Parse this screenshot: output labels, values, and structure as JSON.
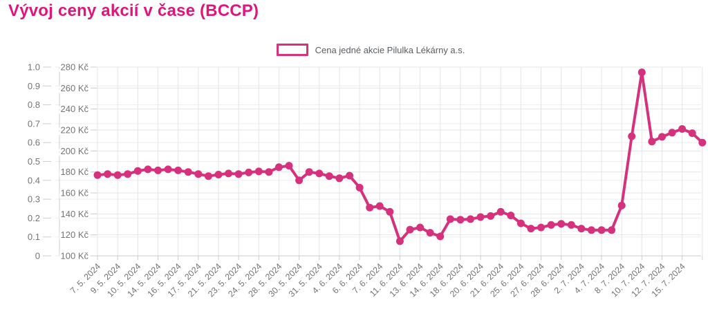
{
  "page": {
    "title": "Vývoj ceny akcií v čase (BCCP)"
  },
  "legend": {
    "label": "Cena jedné akcie Pilulka Lékárny a.s."
  },
  "colors": {
    "title": "#e0157c",
    "line": "#d6317c",
    "point": "#d6317c",
    "legend_border": "#d6317c",
    "axis_text": "#747474",
    "grid": "#e4e4e4",
    "grid_light": "#ededed",
    "axis_border": "#cccccc",
    "background": "#ffffff"
  },
  "chart_data": {
    "type": "line",
    "title": "Vývoj ceny akcií v čase (BCCP)",
    "legend_position": "top",
    "grid": true,
    "series": [
      {
        "name": "Cena jedné akcie Pilulka Lékárny a.s.",
        "values": [
          177,
          178,
          177,
          178,
          181,
          182.5,
          181.5,
          182.5,
          181.5,
          180,
          178,
          176,
          177.5,
          178.5,
          178,
          179.5,
          180.5,
          180,
          184.5,
          186,
          172,
          180,
          178.5,
          176,
          174,
          176.5,
          165,
          146,
          147.5,
          142,
          114,
          125,
          127,
          122,
          118.5,
          135,
          134.5,
          135,
          137,
          138,
          142,
          138.5,
          131,
          126,
          127,
          129.5,
          130.5,
          129.5,
          126,
          124.5,
          124.5,
          124.5,
          148,
          214,
          275,
          209,
          213.5,
          217.5,
          221,
          217,
          208
        ]
      }
    ],
    "points_per_labeled_tick": 2,
    "x_tick_labels": [
      "7. 5. 2024",
      "9. 5. 2024",
      "10. 5. 2024",
      "14. 5. 2024",
      "16. 5. 2024",
      "17. 5. 2024",
      "21. 5. 2024",
      "23. 5. 2024",
      "24. 5. 2024",
      "28. 5. 2024",
      "30. 5. 2024",
      "31. 5. 2024",
      "4. 6. 2024",
      "6. 6. 2024",
      "7. 6. 2024",
      "11. 6. 2024",
      "13. 6. 2024",
      "14. 6. 2024",
      "18. 6. 2024",
      "20. 6. 2024",
      "21. 6. 2024",
      "25. 6. 2024",
      "27. 6. 2024",
      "28. 6. 2024",
      "2. 7. 2024",
      "4. 7. 2024",
      "8. 7. 2024",
      "10. 7. 2024",
      "12. 7. 2024",
      "15. 7. 2024"
    ],
    "ylabel": "Kč",
    "ylim": [
      100,
      280
    ],
    "y_price_tick_labels": [
      "280 Kč",
      "260 Kč",
      "240 Kč",
      "220 Kč",
      "200 Kč",
      "180 Kč",
      "160 Kč",
      "140 Kč",
      "120 Kč",
      "100 Kč"
    ],
    "y_secondary_lim": [
      0,
      1
    ],
    "y_secondary_tick_labels": [
      "1.0",
      "0.9",
      "0.8",
      "0.7",
      "0.6",
      "0.5",
      "0.4",
      "0.3",
      "0.2",
      "0.1",
      "0"
    ]
  }
}
